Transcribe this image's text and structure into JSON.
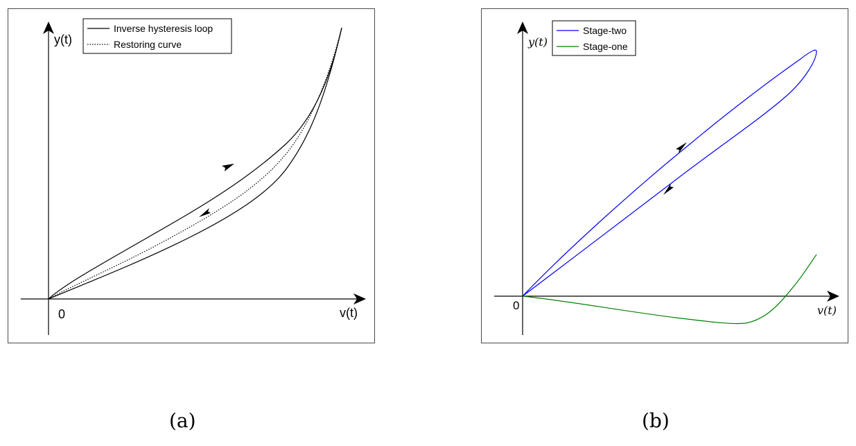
{
  "panels": [
    {
      "id": "a",
      "caption": "(a)",
      "axes": {
        "x_label": "v(t)",
        "y_label": "y(t)",
        "origin_label": "0"
      },
      "legend": [
        {
          "label": "Inverse hysteresis loop",
          "style": "solid",
          "color": "#000000"
        },
        {
          "label": "Restoring curve",
          "style": "dotted",
          "color": "#000000"
        }
      ]
    },
    {
      "id": "b",
      "caption": "(b)",
      "axes": {
        "x_label": "v(t)",
        "y_label": "y(t)",
        "origin_label": "0"
      },
      "legend": [
        {
          "label": "Stage-two",
          "style": "solid",
          "color": "#0000ff"
        },
        {
          "label": "Stage-one",
          "style": "solid",
          "color": "#008000"
        }
      ]
    }
  ]
}
